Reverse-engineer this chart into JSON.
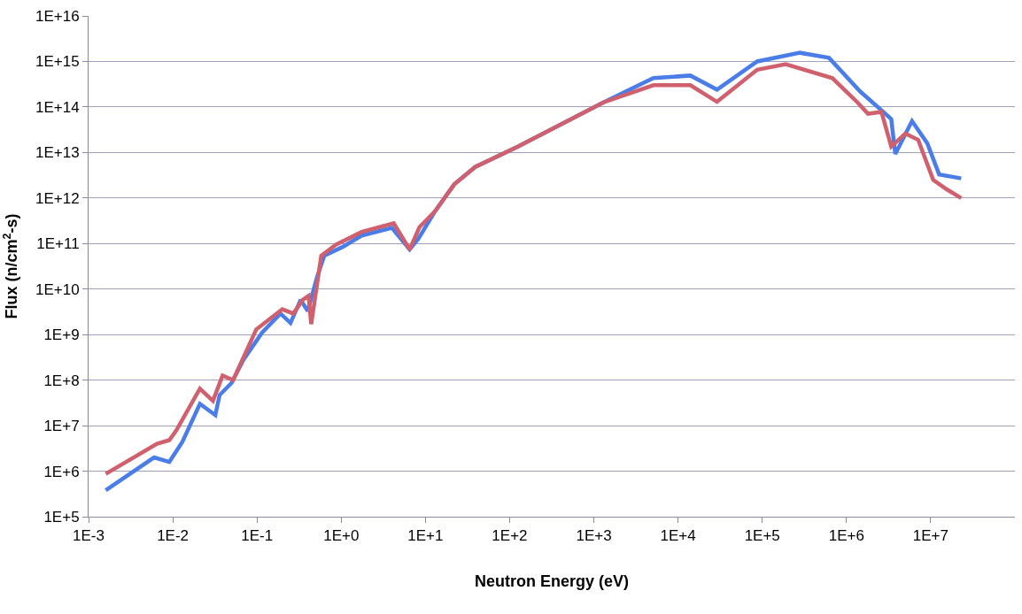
{
  "chart_data": {
    "type": "line",
    "xlabel": "Neutron Energy (eV)",
    "ylabel": "Flux (n/cm$^{2}$-s)",
    "log": "xy",
    "grid": "y",
    "marker": "none",
    "line_style": "solid",
    "xlim": [
      0.001,
      100000000
    ],
    "xticks": [
      {
        "value": 0.001,
        "label": "1E-3"
      },
      {
        "value": 0.01,
        "label": "1E-2"
      },
      {
        "value": 0.1,
        "label": "1E-1"
      },
      {
        "value": 1,
        "label": "1E+0"
      },
      {
        "value": 10,
        "label": "1E+1"
      },
      {
        "value": 100,
        "label": "1E+2"
      },
      {
        "value": 1000,
        "label": "1E+3"
      },
      {
        "value": 10000,
        "label": "1E+4"
      },
      {
        "value": 100000,
        "label": "1E+5"
      },
      {
        "value": 1000000,
        "label": "1E+6"
      },
      {
        "value": 10000000,
        "label": "1E+7"
      }
    ],
    "ylim": [
      100000,
      1e+16
    ],
    "yticks": [
      {
        "value": 100000.0,
        "label": "1E+5"
      },
      {
        "value": 1000000.0,
        "label": "1E+6"
      },
      {
        "value": 10000000.0,
        "label": "1E+7"
      },
      {
        "value": 100000000.0,
        "label": "1E+8"
      },
      {
        "value": 1000000000.0,
        "label": "1E+9"
      },
      {
        "value": 10000000000.0,
        "label": "1E+10"
      },
      {
        "value": 100000000000.0,
        "label": "1E+11"
      },
      {
        "value": 1000000000000.0,
        "label": "1E+12"
      },
      {
        "value": 10000000000000.0,
        "label": "1E+13"
      },
      {
        "value": 100000000000000.0,
        "label": "1E+14"
      },
      {
        "value": 1000000000000000.0,
        "label": "1E+15"
      },
      {
        "value": 1e+16,
        "label": "1E+16"
      }
    ],
    "series": [
      {
        "color": "#4a7de8",
        "x": [
          0.0016,
          0.006,
          0.0091,
          0.013,
          0.021,
          0.032,
          0.036,
          0.05,
          0.069,
          0.115,
          0.19,
          0.25,
          0.33,
          0.4,
          0.52,
          0.63,
          1.05,
          1.75,
          4,
          6.5,
          8.3,
          13,
          22,
          39,
          125,
          1300,
          5100,
          14000,
          29000,
          87000,
          280000,
          620000,
          1450000,
          2900000,
          3400000,
          3800000,
          6000000,
          9100000,
          12600000,
          23000000
        ],
        "values": [
          380000.0,
          2000000.0,
          1600000.0,
          4400000.0,
          30000000.0,
          17000000.0,
          47000000.0,
          87000000.0,
          280000000.0,
          1100000000.0,
          2900000000.0,
          1800000000.0,
          5800000000.0,
          3300000000.0,
          19000000000.0,
          54000000000.0,
          85000000000.0,
          150000000000.0,
          220000000000.0,
          74000000000.0,
          130000000000.0,
          510000000000.0,
          2000000000000.0,
          4800000000000.0,
          13500000000000.0,
          126000000000000.0,
          430000000000000.0,
          490000000000000.0,
          240000000000000.0,
          1000000000000000.0,
          1550000000000000.0,
          1200000000000000.0,
          220000000000000.0,
          71000000000000.0,
          54000000000000.0,
          9300000000000.0,
          49000000000000.0,
          16000000000000.0,
          3300000000000.0,
          2700000000000.0
        ]
      },
      {
        "color": "#d0606e",
        "x": [
          0.0016,
          0.0065,
          0.0091,
          0.011,
          0.021,
          0.03,
          0.039,
          0.052,
          0.098,
          0.2,
          0.27,
          0.35,
          0.41,
          0.44,
          0.58,
          0.87,
          1.75,
          4.2,
          6.5,
          8.5,
          13,
          22,
          39,
          125,
          1300,
          5100,
          14000,
          29000,
          87000,
          190000,
          680000,
          1350000,
          1800000,
          2600000,
          3400000,
          5000000,
          7100000,
          10700000,
          15500000,
          23000000
        ],
        "values": [
          870000.0,
          4000000.0,
          4800000.0,
          7800000.0,
          65000000.0,
          35000000.0,
          126000000.0,
          100000000.0,
          1300000000.0,
          3600000000.0,
          2900000000.0,
          5800000000.0,
          7100000000.0,
          1700000000.0,
          54000000000.0,
          95000000000.0,
          180000000000.0,
          280000000000.0,
          74000000000.0,
          230000000000.0,
          510000000000.0,
          2000000000000.0,
          4800000000000.0,
          13500000000000.0,
          126000000000000.0,
          300000000000000.0,
          300000000000000.0,
          130000000000000.0,
          660000000000000.0,
          870000000000000.0,
          430000000000000.0,
          126000000000000.0,
          71000000000000.0,
          78000000000000.0,
          13500000000000.0,
          26000000000000.0,
          19000000000000.0,
          2500000000000.0,
          1550000000000.0,
          1000000000000.0
        ]
      }
    ]
  }
}
